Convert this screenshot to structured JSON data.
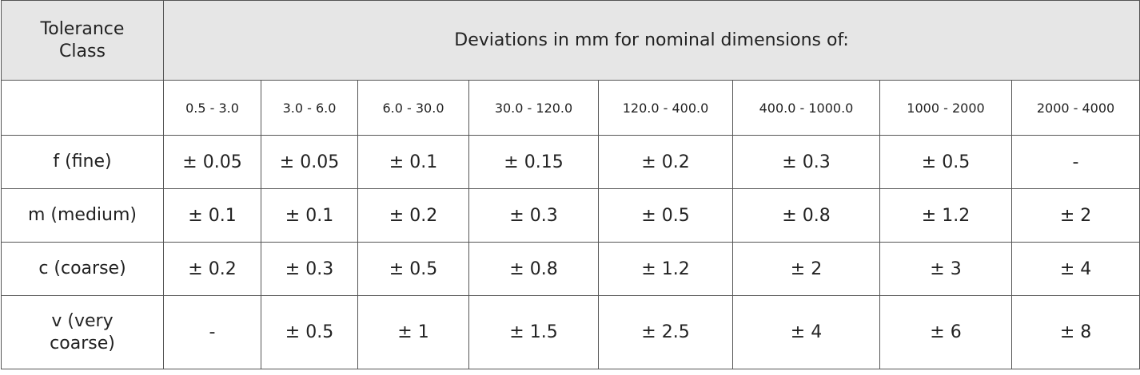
{
  "table": {
    "header": [
      "Tolerance Class",
      "Deviations in mm for nominal dimensions of:"
    ],
    "ranges": [
      "0.5 - 3.0",
      "3.0 - 6.0",
      "6.0 - 30.0",
      "30.0 - 120.0",
      "120.0 - 400.0",
      "400.0 - 1000.0",
      "1000 - 2000",
      "2000 - 4000"
    ],
    "rows": [
      [
        "f (fine)",
        "± 0.05",
        "± 0.05",
        "± 0.1",
        "± 0.15",
        "± 0.2",
        "± 0.3",
        "± 0.5",
        "-"
      ],
      [
        "m (medium)",
        "± 0.1",
        "± 0.1",
        "± 0.2",
        "± 0.3",
        "± 0.5",
        "± 0.8",
        "± 1.2",
        "± 2"
      ],
      [
        "c (coarse)",
        "± 0.2",
        "± 0.3",
        "± 0.5",
        "± 0.8",
        "± 1.2",
        "± 2",
        "± 3",
        "± 4"
      ],
      [
        "v (very coarse)",
        "-",
        "± 0.5",
        "± 1",
        "± 1.5",
        "± 2.5",
        "± 4",
        "± 6",
        "± 8"
      ]
    ]
  }
}
